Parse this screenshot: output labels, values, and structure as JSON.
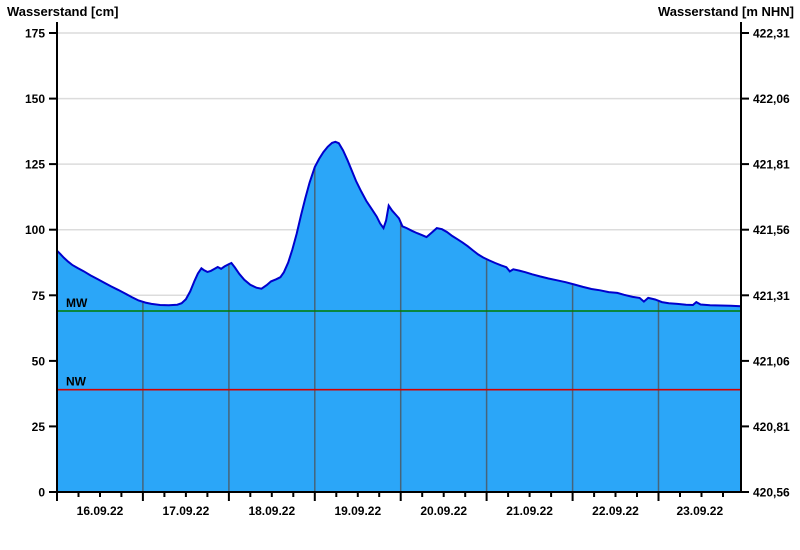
{
  "header": {
    "left_axis_title": "Wasserstand [cm]",
    "right_axis_title": "Wasserstand [m NHN]"
  },
  "chart_data": {
    "type": "area",
    "title": "",
    "left_axis": {
      "title": "Wasserstand [cm]",
      "ticks": [
        "0",
        "25",
        "50",
        "75",
        "100",
        "125",
        "150",
        "175"
      ],
      "tick_values": [
        0,
        25,
        50,
        75,
        100,
        125,
        150,
        175
      ],
      "range": [
        0,
        175
      ],
      "unit": "cm"
    },
    "right_axis": {
      "title": "Wasserstand [m NHN]",
      "ticks": [
        "420,56",
        "420,81",
        "421,06",
        "421,31",
        "421,56",
        "421,81",
        "422,06",
        "422,31"
      ],
      "tick_values_cm": [
        0,
        25,
        50,
        75,
        100,
        125,
        150,
        175
      ],
      "unit": "m NHN"
    },
    "x_axis": {
      "labels": [
        "16.09.22",
        "17.09.22",
        "18.09.22",
        "19.09.22",
        "20.09.22",
        "21.09.22",
        "22.09.22",
        "23.09.22"
      ],
      "days_shown": 8,
      "t_max_days": 7.96,
      "minor_tick_interval_days": 0.25,
      "grid": "vertical day lines inside filled area"
    },
    "reference_lines": [
      {
        "label": "MW",
        "value_cm": 69,
        "color": "#007b00"
      },
      {
        "label": "NW",
        "value_cm": 39,
        "color": "#d40000"
      }
    ],
    "series": [
      {
        "name": "Wasserstand",
        "points_t_days_vs_cm": [
          [
            0,
            92
          ],
          [
            0.04,
            90.7
          ],
          [
            0.08,
            89.3
          ],
          [
            0.13,
            87.8
          ],
          [
            0.18,
            86.5
          ],
          [
            0.24,
            85.4
          ],
          [
            0.31,
            84.2
          ],
          [
            0.39,
            82.6
          ],
          [
            0.47,
            81.2
          ],
          [
            0.55,
            79.8
          ],
          [
            0.63,
            78.4
          ],
          [
            0.71,
            77.1
          ],
          [
            0.79,
            75.7
          ],
          [
            0.87,
            74.3
          ],
          [
            0.95,
            73
          ],
          [
            1.03,
            72.2
          ],
          [
            1.1,
            71.7
          ],
          [
            1.2,
            71.3
          ],
          [
            1.3,
            71.2
          ],
          [
            1.4,
            71.4
          ],
          [
            1.45,
            72
          ],
          [
            1.5,
            73.5
          ],
          [
            1.55,
            76.5
          ],
          [
            1.6,
            80.5
          ],
          [
            1.64,
            83.3
          ],
          [
            1.68,
            85.3
          ],
          [
            1.71,
            84.6
          ],
          [
            1.75,
            83.9
          ],
          [
            1.79,
            84.3
          ],
          [
            1.84,
            85.2
          ],
          [
            1.87,
            85.8
          ],
          [
            1.91,
            85.1
          ],
          [
            1.95,
            86
          ],
          [
            2.0,
            86.9
          ],
          [
            2.03,
            87.3
          ],
          [
            2.07,
            85.6
          ],
          [
            2.12,
            83.2
          ],
          [
            2.18,
            80.9
          ],
          [
            2.25,
            79
          ],
          [
            2.32,
            77.9
          ],
          [
            2.38,
            77.5
          ],
          [
            2.44,
            78.9
          ],
          [
            2.49,
            80.3
          ],
          [
            2.55,
            81.1
          ],
          [
            2.6,
            81.9
          ],
          [
            2.64,
            83.8
          ],
          [
            2.69,
            87.5
          ],
          [
            2.74,
            92.5
          ],
          [
            2.79,
            98.5
          ],
          [
            2.84,
            105.5
          ],
          [
            2.89,
            112
          ],
          [
            2.94,
            118
          ],
          [
            3.0,
            123.9
          ],
          [
            3.05,
            127
          ],
          [
            3.1,
            129.6
          ],
          [
            3.15,
            131.6
          ],
          [
            3.2,
            133.1
          ],
          [
            3.24,
            133.5
          ],
          [
            3.28,
            133
          ],
          [
            3.33,
            130.2
          ],
          [
            3.38,
            126.6
          ],
          [
            3.43,
            122.6
          ],
          [
            3.48,
            118.6
          ],
          [
            3.54,
            114.6
          ],
          [
            3.6,
            111
          ],
          [
            3.66,
            108
          ],
          [
            3.72,
            105
          ],
          [
            3.76,
            102.4
          ],
          [
            3.8,
            100.6
          ],
          [
            3.83,
            103.5
          ],
          [
            3.86,
            109.2
          ],
          [
            3.9,
            107.3
          ],
          [
            3.94,
            105.8
          ],
          [
            3.98,
            104.3
          ],
          [
            4.02,
            101.3
          ],
          [
            4.07,
            100.6
          ],
          [
            4.13,
            99.6
          ],
          [
            4.19,
            98.7
          ],
          [
            4.25,
            97.9
          ],
          [
            4.3,
            97.2
          ],
          [
            4.36,
            98.9
          ],
          [
            4.42,
            100.6
          ],
          [
            4.48,
            100.2
          ],
          [
            4.54,
            99.1
          ],
          [
            4.6,
            97.6
          ],
          [
            4.66,
            96.4
          ],
          [
            4.72,
            95.1
          ],
          [
            4.78,
            93.7
          ],
          [
            4.84,
            92.1
          ],
          [
            4.9,
            90.6
          ],
          [
            4.96,
            89.4
          ],
          [
            5.03,
            88.3
          ],
          [
            5.1,
            87.3
          ],
          [
            5.17,
            86.4
          ],
          [
            5.23,
            85.7
          ],
          [
            5.27,
            84.1
          ],
          [
            5.31,
            84.9
          ],
          [
            5.38,
            84.4
          ],
          [
            5.45,
            83.8
          ],
          [
            5.53,
            83
          ],
          [
            5.62,
            82.2
          ],
          [
            5.72,
            81.4
          ],
          [
            5.82,
            80.7
          ],
          [
            5.92,
            80
          ],
          [
            6.02,
            79.1
          ],
          [
            6.12,
            78.2
          ],
          [
            6.22,
            77.4
          ],
          [
            6.32,
            76.9
          ],
          [
            6.42,
            76.2
          ],
          [
            6.52,
            75.9
          ],
          [
            6.6,
            75.2
          ],
          [
            6.7,
            74.4
          ],
          [
            6.78,
            74
          ],
          [
            6.83,
            72.6
          ],
          [
            6.88,
            74
          ],
          [
            6.96,
            73.4
          ],
          [
            7.04,
            72.4
          ],
          [
            7.12,
            72
          ],
          [
            7.22,
            71.7
          ],
          [
            7.32,
            71.4
          ],
          [
            7.4,
            71.3
          ],
          [
            7.44,
            72.4
          ],
          [
            7.49,
            71.5
          ],
          [
            7.6,
            71.2
          ],
          [
            7.72,
            71.1
          ],
          [
            7.84,
            71
          ],
          [
            7.96,
            70.8
          ]
        ]
      }
    ],
    "colors": {
      "fill": "#2ba6f8",
      "line": "#0000cd",
      "grid_horizontal": "#dcdcdc",
      "grid_vertical_in_area": "#46647a",
      "axis": "#000000",
      "mw_line": "#007b00",
      "nw_line": "#d40000"
    },
    "layout": {
      "plot_left": 57,
      "plot_right": 741,
      "plot_top": 33,
      "plot_bottom": 492,
      "axis_top": 22,
      "grid": "on",
      "legend": "none"
    }
  }
}
